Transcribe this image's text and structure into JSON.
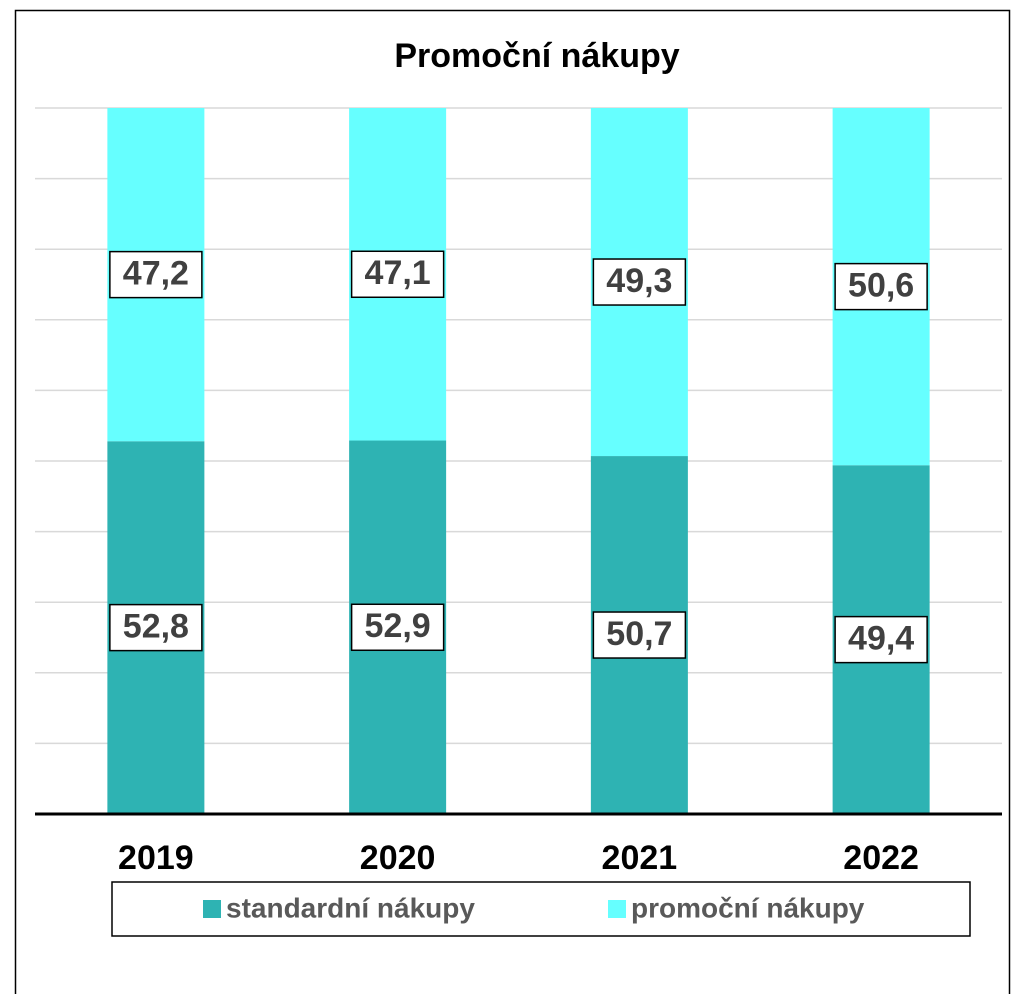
{
  "chart_data": {
    "type": "stacked_bar",
    "title": "Promoční nákupy",
    "categories": [
      "2019",
      "2020",
      "2021",
      "2022"
    ],
    "series": [
      {
        "name": "standardní nákupy",
        "color": "#2eb3b3",
        "values": [
          52.8,
          52.9,
          50.7,
          49.4
        ],
        "value_labels": [
          "52,8",
          "52,9",
          "50,7",
          "49,4"
        ]
      },
      {
        "name": "promoční nákupy",
        "color": "#66ffff",
        "values": [
          47.2,
          47.1,
          49.3,
          50.6
        ],
        "value_labels": [
          "47,2",
          "47,1",
          "49,3",
          "50,6"
        ]
      }
    ],
    "ylim": [
      0,
      100
    ],
    "yticks": [
      0,
      10,
      20,
      30,
      40,
      50,
      60,
      70,
      80,
      90,
      100
    ],
    "grid": true,
    "legend": "bottom"
  }
}
